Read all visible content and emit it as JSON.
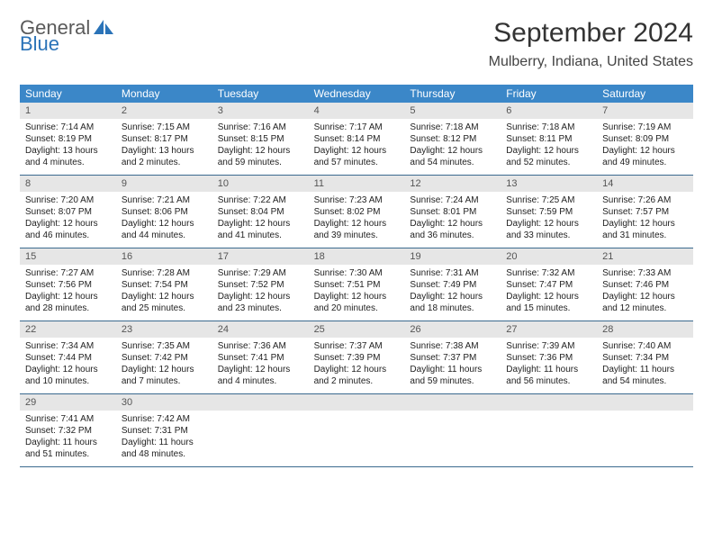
{
  "logo": {
    "word1": "General",
    "word2": "Blue"
  },
  "title": "September 2024",
  "location": "Mulberry, Indiana, United States",
  "colors": {
    "header_band": "#3b87c8",
    "day_band": "#e6e6e6",
    "week_border": "#3b6a8f",
    "logo_blue": "#2a73b8",
    "logo_gray": "#5a5a5a"
  },
  "weekdays": [
    "Sunday",
    "Monday",
    "Tuesday",
    "Wednesday",
    "Thursday",
    "Friday",
    "Saturday"
  ],
  "days": [
    {
      "n": "1",
      "sunrise": "Sunrise: 7:14 AM",
      "sunset": "Sunset: 8:19 PM",
      "daylight": "Daylight: 13 hours and 4 minutes."
    },
    {
      "n": "2",
      "sunrise": "Sunrise: 7:15 AM",
      "sunset": "Sunset: 8:17 PM",
      "daylight": "Daylight: 13 hours and 2 minutes."
    },
    {
      "n": "3",
      "sunrise": "Sunrise: 7:16 AM",
      "sunset": "Sunset: 8:15 PM",
      "daylight": "Daylight: 12 hours and 59 minutes."
    },
    {
      "n": "4",
      "sunrise": "Sunrise: 7:17 AM",
      "sunset": "Sunset: 8:14 PM",
      "daylight": "Daylight: 12 hours and 57 minutes."
    },
    {
      "n": "5",
      "sunrise": "Sunrise: 7:18 AM",
      "sunset": "Sunset: 8:12 PM",
      "daylight": "Daylight: 12 hours and 54 minutes."
    },
    {
      "n": "6",
      "sunrise": "Sunrise: 7:18 AM",
      "sunset": "Sunset: 8:11 PM",
      "daylight": "Daylight: 12 hours and 52 minutes."
    },
    {
      "n": "7",
      "sunrise": "Sunrise: 7:19 AM",
      "sunset": "Sunset: 8:09 PM",
      "daylight": "Daylight: 12 hours and 49 minutes."
    },
    {
      "n": "8",
      "sunrise": "Sunrise: 7:20 AM",
      "sunset": "Sunset: 8:07 PM",
      "daylight": "Daylight: 12 hours and 46 minutes."
    },
    {
      "n": "9",
      "sunrise": "Sunrise: 7:21 AM",
      "sunset": "Sunset: 8:06 PM",
      "daylight": "Daylight: 12 hours and 44 minutes."
    },
    {
      "n": "10",
      "sunrise": "Sunrise: 7:22 AM",
      "sunset": "Sunset: 8:04 PM",
      "daylight": "Daylight: 12 hours and 41 minutes."
    },
    {
      "n": "11",
      "sunrise": "Sunrise: 7:23 AM",
      "sunset": "Sunset: 8:02 PM",
      "daylight": "Daylight: 12 hours and 39 minutes."
    },
    {
      "n": "12",
      "sunrise": "Sunrise: 7:24 AM",
      "sunset": "Sunset: 8:01 PM",
      "daylight": "Daylight: 12 hours and 36 minutes."
    },
    {
      "n": "13",
      "sunrise": "Sunrise: 7:25 AM",
      "sunset": "Sunset: 7:59 PM",
      "daylight": "Daylight: 12 hours and 33 minutes."
    },
    {
      "n": "14",
      "sunrise": "Sunrise: 7:26 AM",
      "sunset": "Sunset: 7:57 PM",
      "daylight": "Daylight: 12 hours and 31 minutes."
    },
    {
      "n": "15",
      "sunrise": "Sunrise: 7:27 AM",
      "sunset": "Sunset: 7:56 PM",
      "daylight": "Daylight: 12 hours and 28 minutes."
    },
    {
      "n": "16",
      "sunrise": "Sunrise: 7:28 AM",
      "sunset": "Sunset: 7:54 PM",
      "daylight": "Daylight: 12 hours and 25 minutes."
    },
    {
      "n": "17",
      "sunrise": "Sunrise: 7:29 AM",
      "sunset": "Sunset: 7:52 PM",
      "daylight": "Daylight: 12 hours and 23 minutes."
    },
    {
      "n": "18",
      "sunrise": "Sunrise: 7:30 AM",
      "sunset": "Sunset: 7:51 PM",
      "daylight": "Daylight: 12 hours and 20 minutes."
    },
    {
      "n": "19",
      "sunrise": "Sunrise: 7:31 AM",
      "sunset": "Sunset: 7:49 PM",
      "daylight": "Daylight: 12 hours and 18 minutes."
    },
    {
      "n": "20",
      "sunrise": "Sunrise: 7:32 AM",
      "sunset": "Sunset: 7:47 PM",
      "daylight": "Daylight: 12 hours and 15 minutes."
    },
    {
      "n": "21",
      "sunrise": "Sunrise: 7:33 AM",
      "sunset": "Sunset: 7:46 PM",
      "daylight": "Daylight: 12 hours and 12 minutes."
    },
    {
      "n": "22",
      "sunrise": "Sunrise: 7:34 AM",
      "sunset": "Sunset: 7:44 PM",
      "daylight": "Daylight: 12 hours and 10 minutes."
    },
    {
      "n": "23",
      "sunrise": "Sunrise: 7:35 AM",
      "sunset": "Sunset: 7:42 PM",
      "daylight": "Daylight: 12 hours and 7 minutes."
    },
    {
      "n": "24",
      "sunrise": "Sunrise: 7:36 AM",
      "sunset": "Sunset: 7:41 PM",
      "daylight": "Daylight: 12 hours and 4 minutes."
    },
    {
      "n": "25",
      "sunrise": "Sunrise: 7:37 AM",
      "sunset": "Sunset: 7:39 PM",
      "daylight": "Daylight: 12 hours and 2 minutes."
    },
    {
      "n": "26",
      "sunrise": "Sunrise: 7:38 AM",
      "sunset": "Sunset: 7:37 PM",
      "daylight": "Daylight: 11 hours and 59 minutes."
    },
    {
      "n": "27",
      "sunrise": "Sunrise: 7:39 AM",
      "sunset": "Sunset: 7:36 PM",
      "daylight": "Daylight: 11 hours and 56 minutes."
    },
    {
      "n": "28",
      "sunrise": "Sunrise: 7:40 AM",
      "sunset": "Sunset: 7:34 PM",
      "daylight": "Daylight: 11 hours and 54 minutes."
    },
    {
      "n": "29",
      "sunrise": "Sunrise: 7:41 AM",
      "sunset": "Sunset: 7:32 PM",
      "daylight": "Daylight: 11 hours and 51 minutes."
    },
    {
      "n": "30",
      "sunrise": "Sunrise: 7:42 AM",
      "sunset": "Sunset: 7:31 PM",
      "daylight": "Daylight: 11 hours and 48 minutes."
    }
  ]
}
